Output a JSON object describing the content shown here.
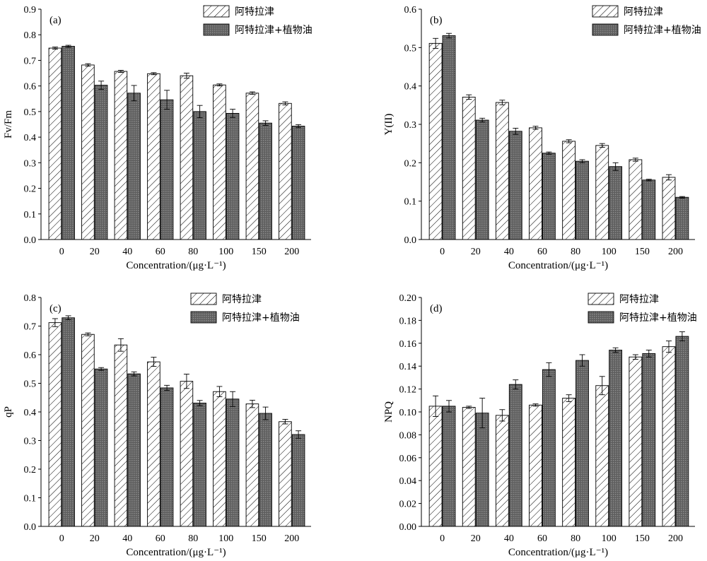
{
  "legend": {
    "series_a": "阿特拉津",
    "series_b": "阿特拉津+植物油"
  },
  "colors": {
    "series_b_fill": "#6e6e6e",
    "series_a_fill": "#ffffff"
  },
  "chart_data": [
    {
      "type": "bar",
      "panel_label": "(a)",
      "xlabel": "Concentration/(μg·L⁻¹)",
      "ylabel": "Fv/Fm",
      "categories": [
        "0",
        "20",
        "40",
        "60",
        "80",
        "100",
        "150",
        "200"
      ],
      "ylim": [
        0,
        0.9
      ],
      "yticks": [
        "0.0",
        "0.1",
        "0.2",
        "0.3",
        "0.4",
        "0.5",
        "0.6",
        "0.7",
        "0.8",
        "0.9"
      ],
      "legend_position": "top-right",
      "grid": false,
      "series": [
        {
          "name": "阿特拉津",
          "values": [
            0.748,
            0.682,
            0.657,
            0.648,
            0.64,
            0.604,
            0.572,
            0.532
          ],
          "errors": [
            0.004,
            0.005,
            0.004,
            0.004,
            0.01,
            0.004,
            0.005,
            0.006
          ]
        },
        {
          "name": "阿特拉津+植物油",
          "values": [
            0.755,
            0.603,
            0.572,
            0.546,
            0.5,
            0.493,
            0.455,
            0.443
          ],
          "errors": [
            0.004,
            0.016,
            0.03,
            0.037,
            0.024,
            0.016,
            0.009,
            0.006
          ]
        }
      ]
    },
    {
      "type": "bar",
      "panel_label": "(b)",
      "xlabel": "Concentration/(μg·L⁻¹)",
      "ylabel": "Y(II)",
      "categories": [
        "0",
        "20",
        "40",
        "60",
        "80",
        "100",
        "150",
        "200"
      ],
      "ylim": [
        0,
        0.6
      ],
      "yticks": [
        "0.0",
        "0.1",
        "0.2",
        "0.3",
        "0.4",
        "0.5",
        "0.6"
      ],
      "legend_position": "top-right",
      "grid": false,
      "series": [
        {
          "name": "阿特拉津",
          "values": [
            0.511,
            0.371,
            0.357,
            0.291,
            0.256,
            0.245,
            0.208,
            0.162
          ],
          "errors": [
            0.013,
            0.006,
            0.006,
            0.004,
            0.004,
            0.005,
            0.004,
            0.007
          ]
        },
        {
          "name": "阿特拉津+植物油",
          "values": [
            0.531,
            0.311,
            0.282,
            0.225,
            0.204,
            0.19,
            0.155,
            0.11
          ],
          "errors": [
            0.006,
            0.005,
            0.008,
            0.003,
            0.004,
            0.01,
            0.002,
            0.002
          ]
        }
      ]
    },
    {
      "type": "bar",
      "panel_label": "(c)",
      "xlabel": "Concentration/(μg·L⁻¹)",
      "ylabel": "qP",
      "categories": [
        "0",
        "20",
        "40",
        "60",
        "80",
        "100",
        "150",
        "200"
      ],
      "ylim": [
        0,
        0.8
      ],
      "yticks": [
        "0.0",
        "0.1",
        "0.2",
        "0.3",
        "0.4",
        "0.5",
        "0.6",
        "0.7",
        "0.8"
      ],
      "legend_position": "top-right",
      "grid": false,
      "series": [
        {
          "name": "阿特拉津",
          "values": [
            0.712,
            0.671,
            0.634,
            0.575,
            0.507,
            0.471,
            0.428,
            0.366
          ],
          "errors": [
            0.014,
            0.005,
            0.022,
            0.016,
            0.025,
            0.018,
            0.013,
            0.008
          ]
        },
        {
          "name": "阿特拉津+植物油",
          "values": [
            0.729,
            0.55,
            0.533,
            0.484,
            0.431,
            0.445,
            0.395,
            0.321
          ],
          "errors": [
            0.007,
            0.005,
            0.007,
            0.009,
            0.009,
            0.026,
            0.022,
            0.013
          ]
        }
      ]
    },
    {
      "type": "bar",
      "panel_label": "(d)",
      "xlabel": "Concentration/(μg·L⁻¹)",
      "ylabel": "NPQ",
      "categories": [
        "0",
        "20",
        "40",
        "60",
        "80",
        "100",
        "150",
        "200"
      ],
      "ylim": [
        0,
        0.2
      ],
      "yticks": [
        "0.00",
        "0.02",
        "0.04",
        "0.06",
        "0.08",
        "0.10",
        "0.12",
        "0.14",
        "0.16",
        "0.18",
        "0.20"
      ],
      "legend_position": "top-right",
      "grid": false,
      "series": [
        {
          "name": "阿特拉津",
          "values": [
            0.105,
            0.104,
            0.097,
            0.106,
            0.112,
            0.123,
            0.148,
            0.157
          ],
          "errors": [
            0.009,
            0.001,
            0.005,
            0.001,
            0.003,
            0.008,
            0.002,
            0.005
          ]
        },
        {
          "name": "阿特拉津+植物油",
          "values": [
            0.105,
            0.099,
            0.124,
            0.137,
            0.145,
            0.154,
            0.151,
            0.166
          ],
          "errors": [
            0.005,
            0.013,
            0.004,
            0.006,
            0.005,
            0.002,
            0.003,
            0.004
          ]
        }
      ]
    }
  ]
}
